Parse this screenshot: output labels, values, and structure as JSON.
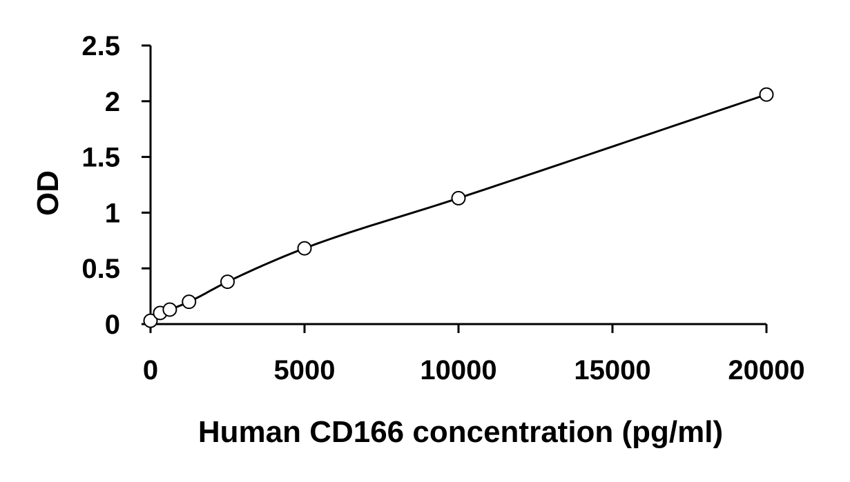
{
  "chart_data": {
    "type": "scatter",
    "title": "",
    "xlabel": "Human CD166 concentration (pg/ml)",
    "ylabel": "OD",
    "xlim": [
      0,
      20000
    ],
    "ylim": [
      0,
      2.5
    ],
    "x_ticks": [
      0,
      5000,
      10000,
      15000,
      20000
    ],
    "x_tick_labels": [
      "0",
      "5000",
      "10000",
      "15000",
      "20000"
    ],
    "y_ticks": [
      0,
      0.5,
      1,
      1.5,
      2,
      2.5
    ],
    "y_tick_labels": [
      "0",
      "0.5",
      "1",
      "1.5",
      "2",
      "2.5"
    ],
    "grid": false,
    "legend": "none",
    "series": [
      {
        "marker": "open-circle",
        "x": [
          0,
          313,
          625,
          1250,
          2500,
          5000,
          10000,
          20000
        ],
        "y": [
          0.03,
          0.1,
          0.13,
          0.2,
          0.38,
          0.68,
          1.13,
          2.06
        ]
      }
    ],
    "fit_curve": {
      "type": "smooth",
      "color": "#000000"
    },
    "colors": {
      "line": "#000000",
      "marker_fill": "#ffffff",
      "marker_stroke": "#000000",
      "axis": "#000000"
    }
  }
}
